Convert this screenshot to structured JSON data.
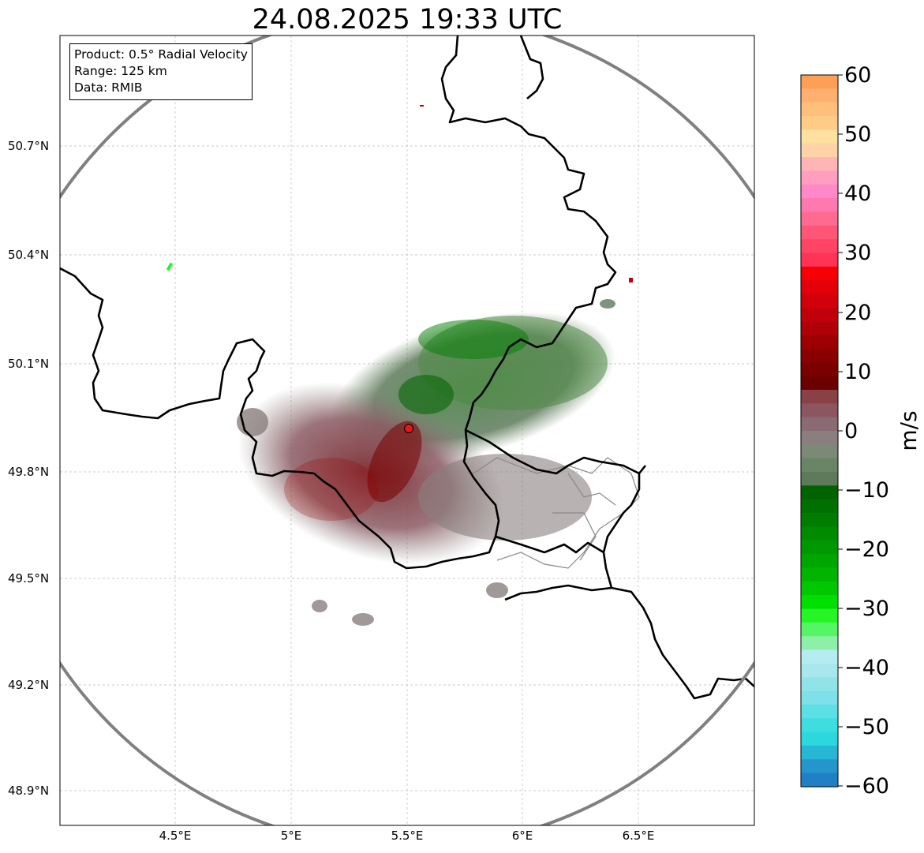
{
  "title": "24.08.2025 19:33 UTC",
  "info_box": {
    "product": "Product: 0.5° Radial Velocity",
    "range": "Range: 125 km",
    "data": "Data: RMIB"
  },
  "axes": {
    "lat_labels": [
      "50.7°N",
      "50.4°N",
      "50.1°N",
      "49.8°N",
      "49.5°N",
      "49.2°N",
      "48.9°N"
    ],
    "lon_labels": [
      "4.5°E",
      "5°E",
      "5.5°E",
      "6°E",
      "6.5°E"
    ],
    "grid": true
  },
  "radar_site": {
    "lon": 5.5,
    "lat": 49.91,
    "marker_color": "#e8141b"
  },
  "range_ring_color": "#808080",
  "colorbar": {
    "unit": "m/s",
    "min": -60,
    "max": 60,
    "ticks": [
      "60",
      "50",
      "40",
      "30",
      "20",
      "10",
      "0",
      "−10",
      "−20",
      "−30",
      "−40",
      "−50",
      "−60"
    ],
    "colors_top_to_bottom": [
      "#ff9f55",
      "#ffb070",
      "#ffc07e",
      "#ffcc88",
      "#ffe0a0",
      "#ffd3a8",
      "#ffb5b5",
      "#ff9ec0",
      "#ff88c8",
      "#ff78b0",
      "#ff6a90",
      "#ff5577",
      "#ff4466",
      "#ff3355",
      "#f60005",
      "#e40008",
      "#d2000a",
      "#c0000a",
      "#ae0006",
      "#9c0000",
      "#8a0000",
      "#7a0000",
      "#6a0000",
      "#894145",
      "#8c5660",
      "#8a6b73",
      "#8a7e7e",
      "#7a8a76",
      "#6a8466",
      "#5d7a5b",
      "#006300",
      "#007000",
      "#007d00",
      "#008a00",
      "#009800",
      "#00a600",
      "#00b400",
      "#00c800",
      "#00e000",
      "#25f525",
      "#55f565",
      "#8ef0a8",
      "#b5ecf0",
      "#a8e8ec",
      "#90e4e8",
      "#7ee0e8",
      "#5ddfe6",
      "#3edde0",
      "#2bd9dd",
      "#27b6d3",
      "#2496cc",
      "#2180c5"
    ]
  }
}
